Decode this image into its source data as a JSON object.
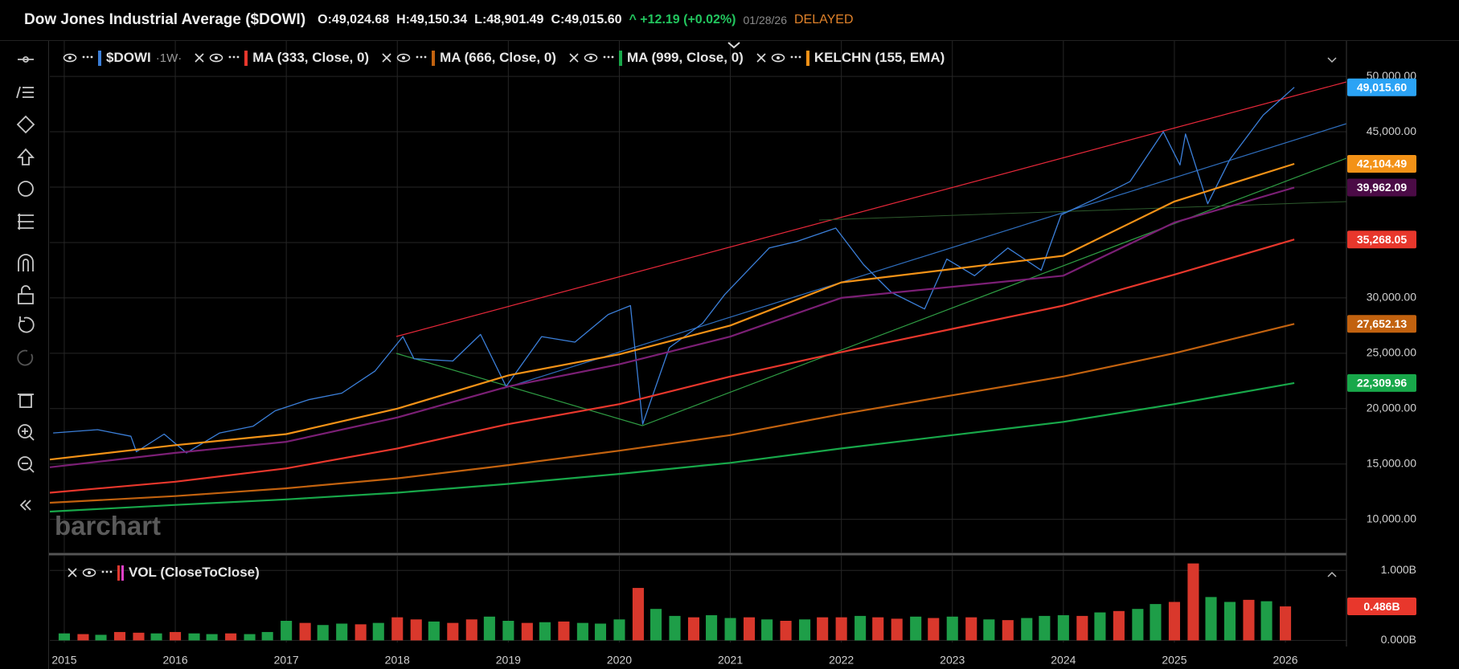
{
  "header": {
    "title": "Dow Jones Industrial Average ($DOWI)",
    "open": "O:49,024.68",
    "high": "H:49,150.34",
    "low": "L:48,901.49",
    "close": "C:49,015.60",
    "change": "^ +12.19 (+0.02%)",
    "date": "01/28/26",
    "status": "DELAYED"
  },
  "watermark": "barchart",
  "chart_data": [
    {
      "type": "line",
      "interval": "·1W·",
      "xlim": [
        2014.87,
        2026.55
      ],
      "ylim": [
        7000,
        53200
      ],
      "yticks": [
        {
          "value": 10000,
          "label": "10,000.00"
        },
        {
          "value": 15000,
          "label": "15,000.00"
        },
        {
          "value": 20000,
          "label": "20,000.00"
        },
        {
          "value": 25000,
          "label": "25,000.00"
        },
        {
          "value": 30000,
          "label": "30,000.00"
        },
        {
          "value": 35000,
          "label": "35,000.00"
        },
        {
          "value": 40000,
          "label": "40,000.00"
        },
        {
          "value": 45000,
          "label": "45,000.00"
        },
        {
          "value": 50000,
          "label": "50,000.00"
        }
      ],
      "grid": true,
      "series": [
        {
          "name": "$DOWI",
          "color": "#3b7fd9",
          "label_color": "#2ba3f5",
          "x": [
            2014.9,
            2015.3,
            2015.6,
            2015.65,
            2015.9,
            2016.1,
            2016.4,
            2016.7,
            2016.9,
            2017.2,
            2017.5,
            2017.8,
            2018.05,
            2018.15,
            2018.5,
            2018.75,
            2018.98,
            2019.3,
            2019.6,
            2019.9,
            2020.1,
            2020.21,
            2020.45,
            2020.75,
            2020.95,
            2021.35,
            2021.6,
            2021.95,
            2022.2,
            2022.45,
            2022.75,
            2022.95,
            2023.2,
            2023.5,
            2023.8,
            2023.98,
            2024.3,
            2024.6,
            2024.9,
            2025.05,
            2025.1,
            2025.3,
            2025.5,
            2025.8,
            2026.08
          ],
          "values": [
            17800,
            18100,
            17500,
            16100,
            17700,
            16000,
            17800,
            18400,
            19800,
            20800,
            21400,
            23400,
            26500,
            24500,
            24300,
            26700,
            22000,
            26500,
            26000,
            28500,
            29300,
            18600,
            25500,
            27700,
            30300,
            34500,
            35100,
            36300,
            33000,
            30500,
            29000,
            33500,
            32000,
            34500,
            32500,
            37500,
            39000,
            40500,
            45000,
            42000,
            44800,
            38500,
            42500,
            46500,
            49015.6
          ],
          "value_labels": [
            null,
            null,
            null,
            null,
            null,
            null,
            null,
            null,
            null,
            null,
            null,
            null,
            null,
            null,
            null,
            null,
            null,
            null,
            null,
            null,
            null,
            null,
            null,
            null,
            null,
            null,
            null,
            null,
            null,
            null,
            null,
            null,
            null,
            null,
            null,
            null,
            null,
            null,
            null,
            null,
            null,
            null,
            null,
            null,
            "49,015.60"
          ]
        },
        {
          "name": "MA (333, Close, 0)",
          "color": "#e8372c",
          "x": [
            2014.87,
            2016,
            2017,
            2018,
            2019,
            2020,
            2021,
            2022,
            2023,
            2024,
            2025,
            2026.08
          ],
          "values": [
            12400,
            13400,
            14600,
            16400,
            18600,
            20400,
            22900,
            25100,
            27200,
            29300,
            32100,
            35268.05
          ],
          "value_labels": [
            null,
            null,
            null,
            null,
            null,
            null,
            null,
            null,
            null,
            null,
            null,
            "35,268.05"
          ]
        },
        {
          "name": "MA (666, Close, 0)",
          "color": "#c2620f",
          "x": [
            2014.87,
            2016,
            2017,
            2018,
            2019,
            2020,
            2021,
            2022,
            2023,
            2024,
            2025,
            2026.08
          ],
          "values": [
            11500,
            12100,
            12800,
            13700,
            14900,
            16200,
            17600,
            19500,
            21200,
            22900,
            25000,
            27652.13
          ],
          "value_labels": [
            null,
            null,
            null,
            null,
            null,
            null,
            null,
            null,
            null,
            null,
            null,
            "27,652.13"
          ]
        },
        {
          "name": "MA (999, Close, 0)",
          "color": "#18a84a",
          "x": [
            2014.87,
            2016,
            2017,
            2018,
            2019,
            2020,
            2021,
            2022,
            2023,
            2024,
            2025,
            2026.08
          ],
          "values": [
            10700,
            11300,
            11800,
            12400,
            13200,
            14100,
            15100,
            16400,
            17600,
            18800,
            20400,
            22309.96
          ],
          "value_labels": [
            null,
            null,
            null,
            null,
            null,
            null,
            null,
            null,
            null,
            null,
            null,
            "22,309.96"
          ]
        },
        {
          "name": "KELCHN (155, EMA)",
          "color": "#f39217",
          "x": [
            2014.87,
            2016,
            2017,
            2018,
            2019,
            2020,
            2021,
            2022,
            2023,
            2024,
            2025,
            2026.08
          ],
          "values": [
            15400,
            16700,
            17700,
            20000,
            23000,
            24900,
            27500,
            31400,
            32600,
            33800,
            38700,
            42104.49
          ],
          "value_labels": [
            null,
            null,
            null,
            null,
            null,
            null,
            null,
            null,
            null,
            null,
            null,
            "42,104.49"
          ]
        },
        {
          "color": "#7b1f75",
          "label_color": "#4b0b46",
          "x": [
            2014.87,
            2016,
            2017,
            2018,
            2019,
            2020,
            2021,
            2022,
            2023,
            2024,
            2025,
            2026.08
          ],
          "values": [
            14700,
            16000,
            17000,
            19200,
            22000,
            24000,
            26500,
            30000,
            31000,
            32000,
            36800,
            39962.09
          ],
          "value_labels": [
            null,
            null,
            null,
            null,
            null,
            null,
            null,
            null,
            null,
            null,
            null,
            "39,962.09"
          ]
        }
      ]
    },
    {
      "type": "bar",
      "title": "VOL (CloseToClose)",
      "xlim": [
        2014.87,
        2026.55
      ],
      "xticks": [
        2015,
        2016,
        2017,
        2018,
        2019,
        2020,
        2021,
        2022,
        2023,
        2024,
        2025,
        2026
      ],
      "ylim": [
        -0.03,
        1.21
      ],
      "yticks": [
        {
          "value": 0,
          "label": "0.000B"
        },
        {
          "value": 1,
          "label": "1.000B"
        }
      ],
      "grid": true,
      "label_color": "#e8372c",
      "x": [
        2015,
        2015.17,
        2015.33,
        2015.5,
        2015.67,
        2015.83,
        2016,
        2016.17,
        2016.33,
        2016.5,
        2016.67,
        2016.83,
        2017,
        2017.17,
        2017.33,
        2017.5,
        2017.67,
        2017.83,
        2018,
        2018.17,
        2018.33,
        2018.5,
        2018.67,
        2018.83,
        2019,
        2019.17,
        2019.33,
        2019.5,
        2019.67,
        2019.83,
        2020,
        2020.17,
        2020.33,
        2020.5,
        2020.67,
        2020.83,
        2021,
        2021.17,
        2021.33,
        2021.5,
        2021.67,
        2021.83,
        2022,
        2022.17,
        2022.33,
        2022.5,
        2022.67,
        2022.83,
        2023,
        2023.17,
        2023.33,
        2023.5,
        2023.67,
        2023.83,
        2024,
        2024.17,
        2024.33,
        2024.5,
        2024.67,
        2024.83,
        2025,
        2025.17,
        2025.33,
        2025.5,
        2025.67,
        2025.83,
        2026
      ],
      "values": [
        0.1,
        0.09,
        0.08,
        0.12,
        0.11,
        0.1,
        0.12,
        0.1,
        0.09,
        0.1,
        0.09,
        0.12,
        0.28,
        0.25,
        0.22,
        0.24,
        0.23,
        0.25,
        0.33,
        0.3,
        0.27,
        0.25,
        0.3,
        0.34,
        0.28,
        0.25,
        0.26,
        0.27,
        0.25,
        0.24,
        0.3,
        0.75,
        0.45,
        0.35,
        0.33,
        0.36,
        0.32,
        0.33,
        0.3,
        0.28,
        0.3,
        0.33,
        0.33,
        0.35,
        0.33,
        0.31,
        0.34,
        0.32,
        0.34,
        0.33,
        0.3,
        0.29,
        0.32,
        0.35,
        0.36,
        0.35,
        0.4,
        0.42,
        0.45,
        0.52,
        0.55,
        1.1,
        0.62,
        0.55,
        0.58,
        0.56,
        0.486
      ],
      "colors": [
        "#1e9e48",
        "#d9382c",
        "#1e9e48",
        "#d9382c",
        "#d9382c",
        "#1e9e48",
        "#d9382c",
        "#1e9e48",
        "#1e9e48",
        "#d9382c",
        "#1e9e48",
        "#1e9e48",
        "#1e9e48",
        "#d9382c",
        "#1e9e48",
        "#1e9e48",
        "#d9382c",
        "#1e9e48",
        "#d9382c",
        "#d9382c",
        "#1e9e48",
        "#d9382c",
        "#d9382c",
        "#1e9e48",
        "#1e9e48",
        "#d9382c",
        "#1e9e48",
        "#d9382c",
        "#1e9e48",
        "#1e9e48",
        "#1e9e48",
        "#d9382c",
        "#1e9e48",
        "#1e9e48",
        "#d9382c",
        "#1e9e48",
        "#1e9e48",
        "#d9382c",
        "#1e9e48",
        "#d9382c",
        "#1e9e48",
        "#d9382c",
        "#d9382c",
        "#1e9e48",
        "#d9382c",
        "#d9382c",
        "#1e9e48",
        "#d9382c",
        "#1e9e48",
        "#d9382c",
        "#1e9e48",
        "#d9382c",
        "#1e9e48",
        "#1e9e48",
        "#1e9e48",
        "#d9382c",
        "#1e9e48",
        "#d9382c",
        "#1e9e48",
        "#1e9e48",
        "#d9382c",
        "#d9382c",
        "#1e9e48",
        "#1e9e48",
        "#d9382c",
        "#1e9e48",
        "#d9382c"
      ],
      "value_labels": [
        null,
        null,
        null,
        null,
        null,
        null,
        null,
        null,
        null,
        null,
        null,
        null,
        null,
        null,
        null,
        null,
        null,
        null,
        null,
        null,
        null,
        null,
        null,
        null,
        null,
        null,
        null,
        null,
        null,
        null,
        null,
        null,
        null,
        null,
        null,
        null,
        null,
        null,
        null,
        null,
        null,
        null,
        null,
        null,
        null,
        null,
        null,
        null,
        null,
        null,
        null,
        null,
        null,
        null,
        null,
        null,
        null,
        null,
        null,
        null,
        null,
        null,
        null,
        null,
        null,
        null,
        "0.486B"
      ]
    }
  ]
}
